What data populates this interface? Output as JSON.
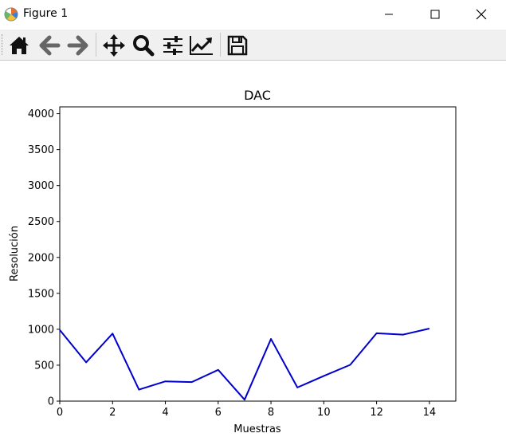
{
  "window": {
    "title": "Figure 1"
  },
  "toolbar": {
    "items": [
      {
        "name": "home-button",
        "icon": "home-icon"
      },
      {
        "name": "back-button",
        "icon": "arrow-left-icon"
      },
      {
        "name": "forward-button",
        "icon": "arrow-right-icon"
      },
      {
        "name": "pan-button",
        "icon": "move-icon"
      },
      {
        "name": "zoom-button",
        "icon": "magnifier-icon"
      },
      {
        "name": "subplots-button",
        "icon": "sliders-icon"
      },
      {
        "name": "edit-axis-button",
        "icon": "line-chart-icon"
      },
      {
        "name": "save-button",
        "icon": "floppy-disk-icon"
      }
    ]
  },
  "chart_data": {
    "type": "line",
    "title": "DAC",
    "xlabel": "Muestras",
    "ylabel": "Resolución",
    "xlim": [
      0,
      15
    ],
    "ylim": [
      0,
      4095
    ],
    "xticks": [
      0,
      2,
      4,
      6,
      8,
      10,
      12,
      14
    ],
    "yticks": [
      0,
      500,
      1000,
      1500,
      2000,
      2500,
      3000,
      3500,
      4000
    ],
    "grid": false,
    "series": [
      {
        "color": "#0000cc",
        "x": [
          0,
          1,
          2,
          3,
          4,
          5,
          6,
          7,
          8,
          9,
          10,
          11,
          12,
          13,
          14
        ],
        "y": [
          990,
          540,
          940,
          160,
          275,
          265,
          435,
          20,
          865,
          190,
          350,
          505,
          945,
          925,
          1010
        ]
      }
    ]
  }
}
